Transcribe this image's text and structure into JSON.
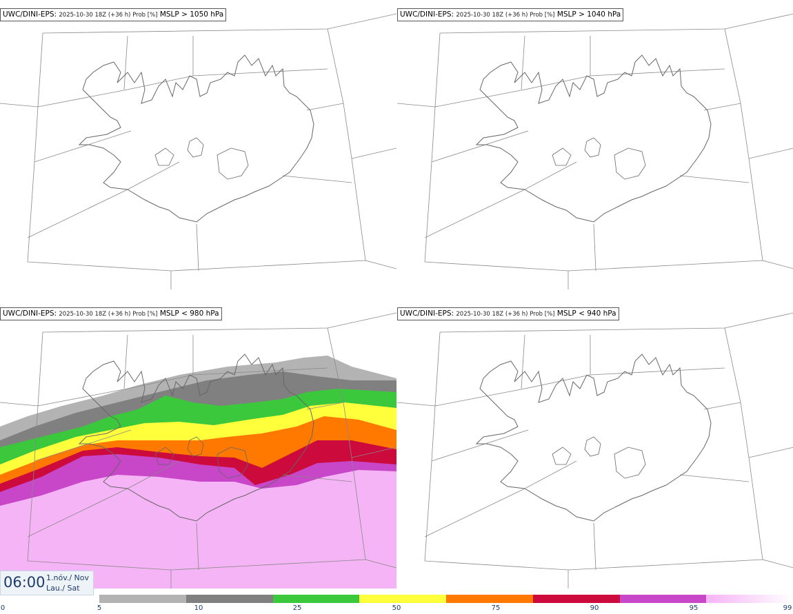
{
  "panels": [
    {
      "model": "UWC/DINI-EPS",
      "run": "2025-10-30 18Z (+36 h) Prob [%]",
      "variable": "MSLP > 1050 hPa"
    },
    {
      "model": "UWC/DINI-EPS",
      "run": "2025-10-30 18Z (+36 h) Prob [%]",
      "variable": "MSLP > 1040 hPa"
    },
    {
      "model": "UWC/DINI-EPS",
      "run": "2025-10-30 18Z (+36 h) Prob [%]",
      "variable": "MSLP < 980 hPa"
    },
    {
      "model": "UWC/DINI-EPS",
      "run": "2025-10-30 18Z (+36 h) Prob [%]",
      "variable": "MSLP < 940 hPa"
    }
  ],
  "valid_time": {
    "time": "06:00",
    "date_line1": "1.nóv./ Nov",
    "date_line2": "Lau./ Sat"
  },
  "colorbar": {
    "ticks": [
      "0",
      "5",
      "10",
      "25",
      "50",
      "75",
      "90",
      "95",
      "99"
    ],
    "colors": [
      "#b3b3b3",
      "#808080",
      "#3cc83c",
      "#ffff3c",
      "#ff7800",
      "#cd0a3c",
      "#c846c8",
      "#f5b4f5"
    ]
  },
  "map_colors": {
    "coast": "#666666",
    "grid": "#888888",
    "p5": "#b3b3b3",
    "p10": "#808080",
    "p25": "#3cc83c",
    "p50": "#ffff3c",
    "p75": "#ff7800",
    "p90": "#cd0a3c",
    "p95": "#c846c8",
    "p99": "#f5b4f5"
  }
}
